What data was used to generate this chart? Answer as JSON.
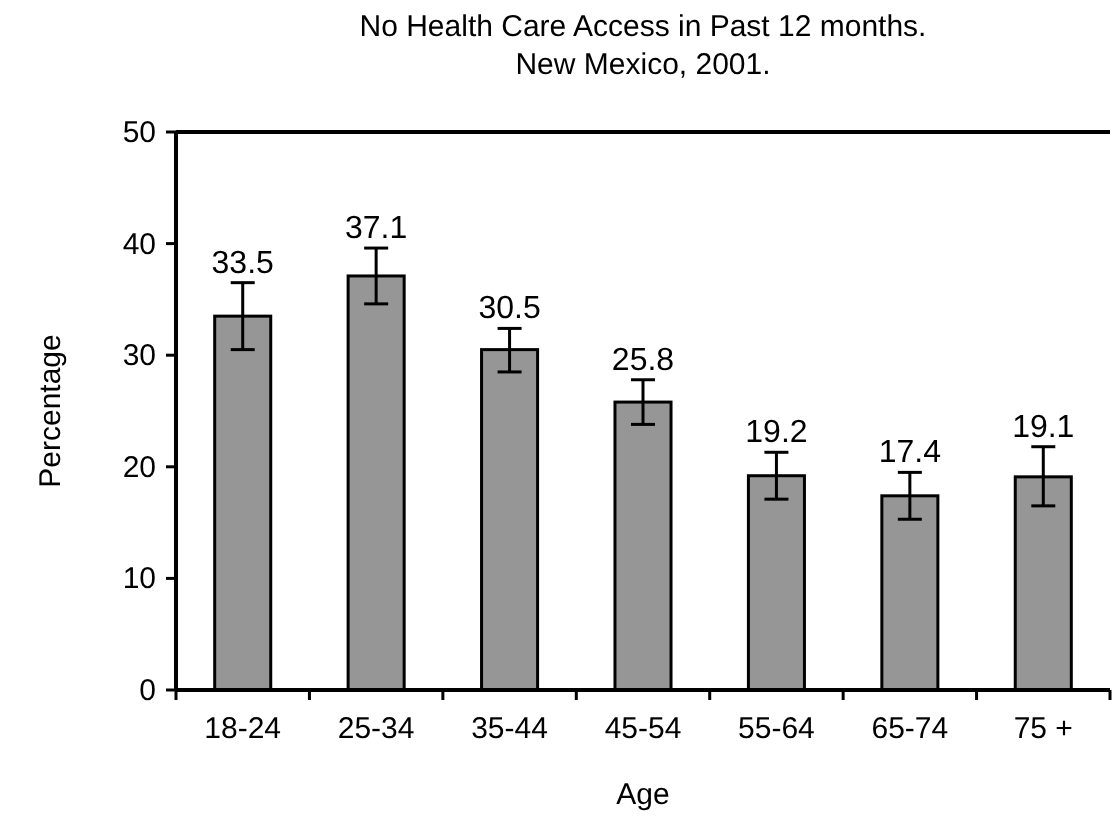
{
  "chart_data": {
    "type": "bar",
    "title": "No Health Care Access in Past 12 months.",
    "subtitle": "New Mexico, 2001.",
    "xlabel": "Age",
    "ylabel": "Percentage",
    "categories": [
      "18-24",
      "25-34",
      "35-44",
      "45-54",
      "55-64",
      "65-74",
      "75 +"
    ],
    "values": [
      33.5,
      37.1,
      30.5,
      25.8,
      19.2,
      17.4,
      19.1
    ],
    "errors": [
      [
        30.5,
        36.5
      ],
      [
        34.6,
        39.6
      ],
      [
        28.5,
        32.4
      ],
      [
        23.8,
        27.8
      ],
      [
        17.1,
        21.3
      ],
      [
        15.3,
        19.5
      ],
      [
        16.5,
        21.8
      ]
    ],
    "color": "#969696",
    "data_labels": true,
    "ylim": [
      0,
      50
    ],
    "yticks": [
      0,
      10,
      20,
      30,
      40,
      50
    ],
    "grid": false
  }
}
